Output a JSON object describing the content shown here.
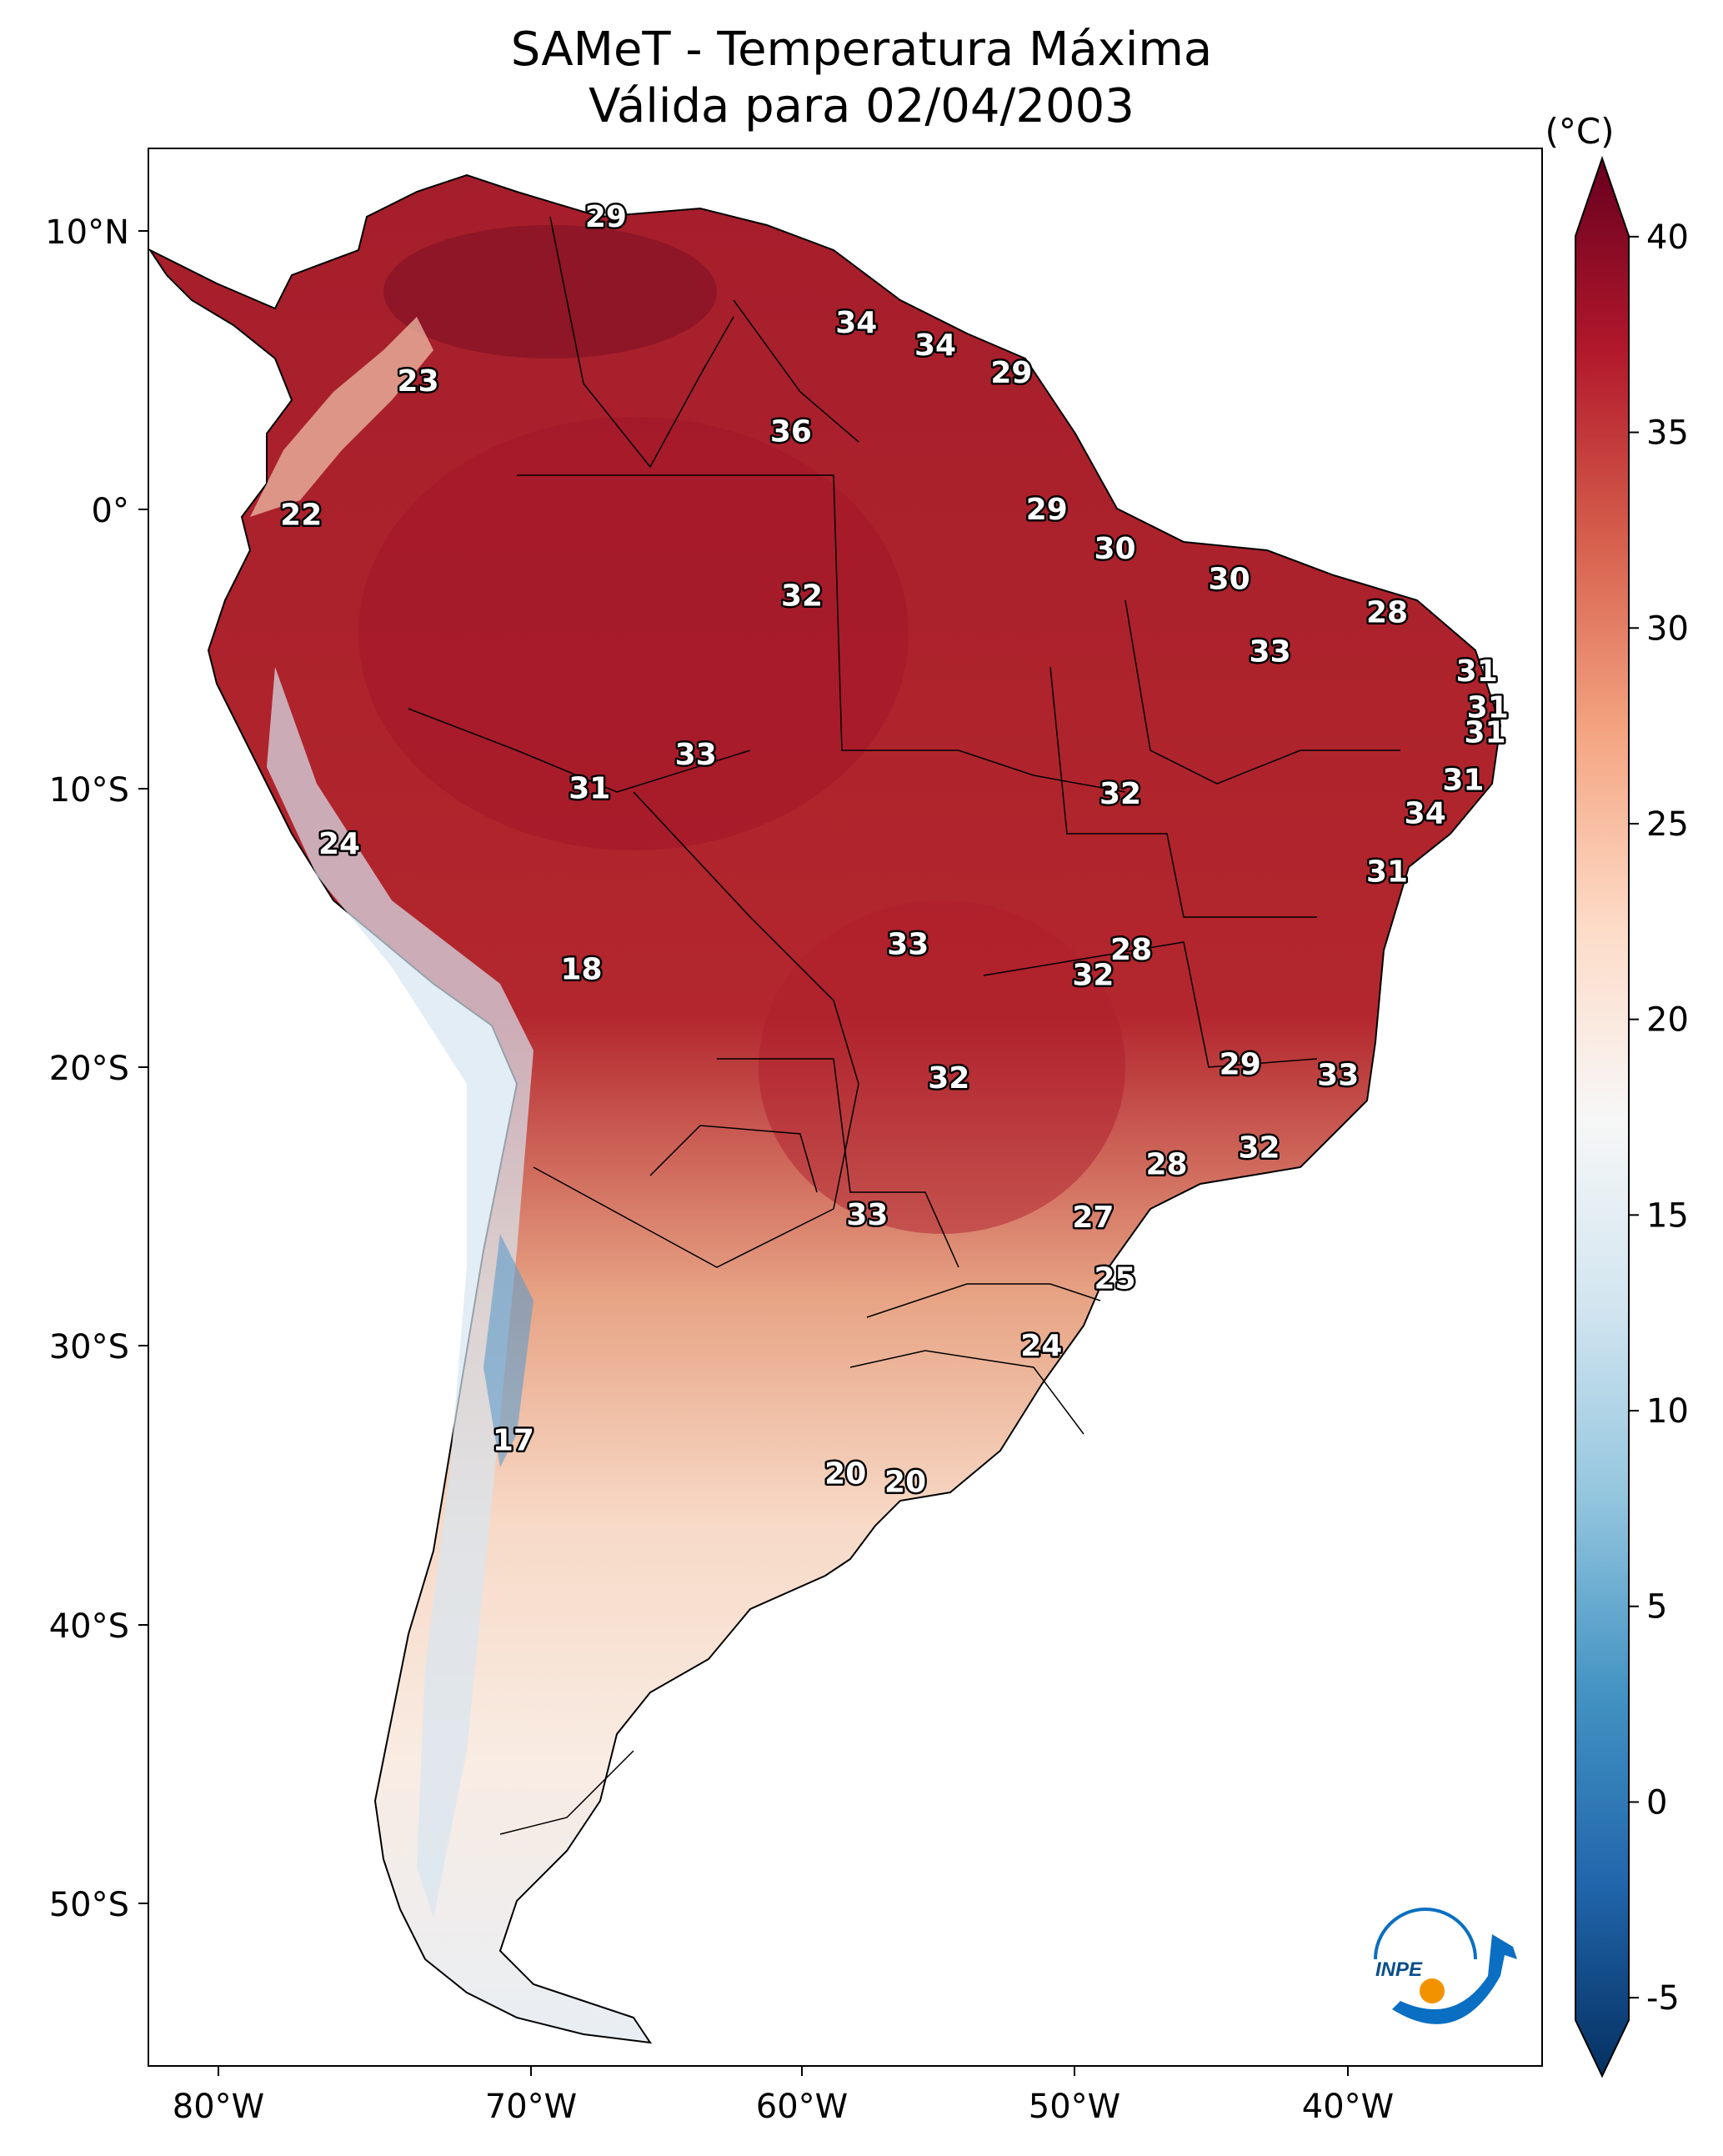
{
  "title": {
    "line1": "SAMeT - Temperatura Máxima",
    "line2": "Válida para 02/04/2003"
  },
  "lon_ticks": [
    "80°W",
    "70°W",
    "60°W",
    "50°W",
    "40°W"
  ],
  "lat_ticks": [
    "10°N",
    "0°",
    "10°S",
    "20°S",
    "30°S",
    "40°S",
    "50°S"
  ],
  "colorbar": {
    "units": "(°C)",
    "min": -7,
    "max": 42,
    "ticks": [
      -5,
      0,
      5,
      10,
      15,
      20,
      25,
      30,
      35,
      40
    ],
    "tick_labels": [
      "-5",
      "0",
      "5",
      "10",
      "15",
      "20",
      "25",
      "30",
      "35",
      "40"
    ],
    "colors": [
      "#053061",
      "#2166ac",
      "#4393c3",
      "#92c5de",
      "#d1e5f0",
      "#f7f7f7",
      "#fddbc7",
      "#f4a582",
      "#d6604d",
      "#b2182b",
      "#67001f"
    ]
  },
  "logo": {
    "text": "INPE",
    "accent": "#0a6fc2",
    "dot": "#f39200"
  },
  "station_values": [
    {
      "lon": -67.2,
      "lat": 10.5,
      "value": "29"
    },
    {
      "lon": -58.0,
      "lat": 6.7,
      "value": "34"
    },
    {
      "lon": -55.1,
      "lat": 5.9,
      "value": "34"
    },
    {
      "lon": -52.3,
      "lat": 4.9,
      "value": "29"
    },
    {
      "lon": -60.4,
      "lat": 2.8,
      "value": "36"
    },
    {
      "lon": -74.1,
      "lat": 4.6,
      "value": "23"
    },
    {
      "lon": -78.4,
      "lat": -0.2,
      "value": "22"
    },
    {
      "lon": -51.0,
      "lat": 0.0,
      "value": "29"
    },
    {
      "lon": -48.5,
      "lat": -1.4,
      "value": "30"
    },
    {
      "lon": -44.3,
      "lat": -2.5,
      "value": "30"
    },
    {
      "lon": -38.5,
      "lat": -3.7,
      "value": "28"
    },
    {
      "lon": -60.0,
      "lat": -3.1,
      "value": "32"
    },
    {
      "lon": -42.8,
      "lat": -5.1,
      "value": "33"
    },
    {
      "lon": -35.2,
      "lat": -5.8,
      "value": "31"
    },
    {
      "lon": -34.8,
      "lat": -7.1,
      "value": "31"
    },
    {
      "lon": -34.9,
      "lat": -8.0,
      "value": "31"
    },
    {
      "lon": -63.9,
      "lat": -8.8,
      "value": "33"
    },
    {
      "lon": -67.8,
      "lat": -10.0,
      "value": "31"
    },
    {
      "lon": -48.3,
      "lat": -10.2,
      "value": "32"
    },
    {
      "lon": -35.7,
      "lat": -9.7,
      "value": "31"
    },
    {
      "lon": -37.1,
      "lat": -10.9,
      "value": "34"
    },
    {
      "lon": -38.5,
      "lat": -13.0,
      "value": "31"
    },
    {
      "lon": -77.0,
      "lat": -12.0,
      "value": "24"
    },
    {
      "lon": -56.1,
      "lat": -15.6,
      "value": "33"
    },
    {
      "lon": -47.9,
      "lat": -15.8,
      "value": "28"
    },
    {
      "lon": -49.3,
      "lat": -16.7,
      "value": "32"
    },
    {
      "lon": -68.1,
      "lat": -16.5,
      "value": "18"
    },
    {
      "lon": -43.9,
      "lat": -19.9,
      "value": "29"
    },
    {
      "lon": -40.3,
      "lat": -20.3,
      "value": "33"
    },
    {
      "lon": -54.6,
      "lat": -20.4,
      "value": "32"
    },
    {
      "lon": -43.2,
      "lat": -22.9,
      "value": "32"
    },
    {
      "lon": -46.6,
      "lat": -23.5,
      "value": "28"
    },
    {
      "lon": -57.6,
      "lat": -25.3,
      "value": "33"
    },
    {
      "lon": -49.3,
      "lat": -25.4,
      "value": "27"
    },
    {
      "lon": -48.5,
      "lat": -27.6,
      "value": "25"
    },
    {
      "lon": -51.2,
      "lat": -30.0,
      "value": "24"
    },
    {
      "lon": -70.6,
      "lat": -33.4,
      "value": "17"
    },
    {
      "lon": -58.4,
      "lat": -34.6,
      "value": "20"
    },
    {
      "lon": -56.2,
      "lat": -34.9,
      "value": "20"
    }
  ]
}
